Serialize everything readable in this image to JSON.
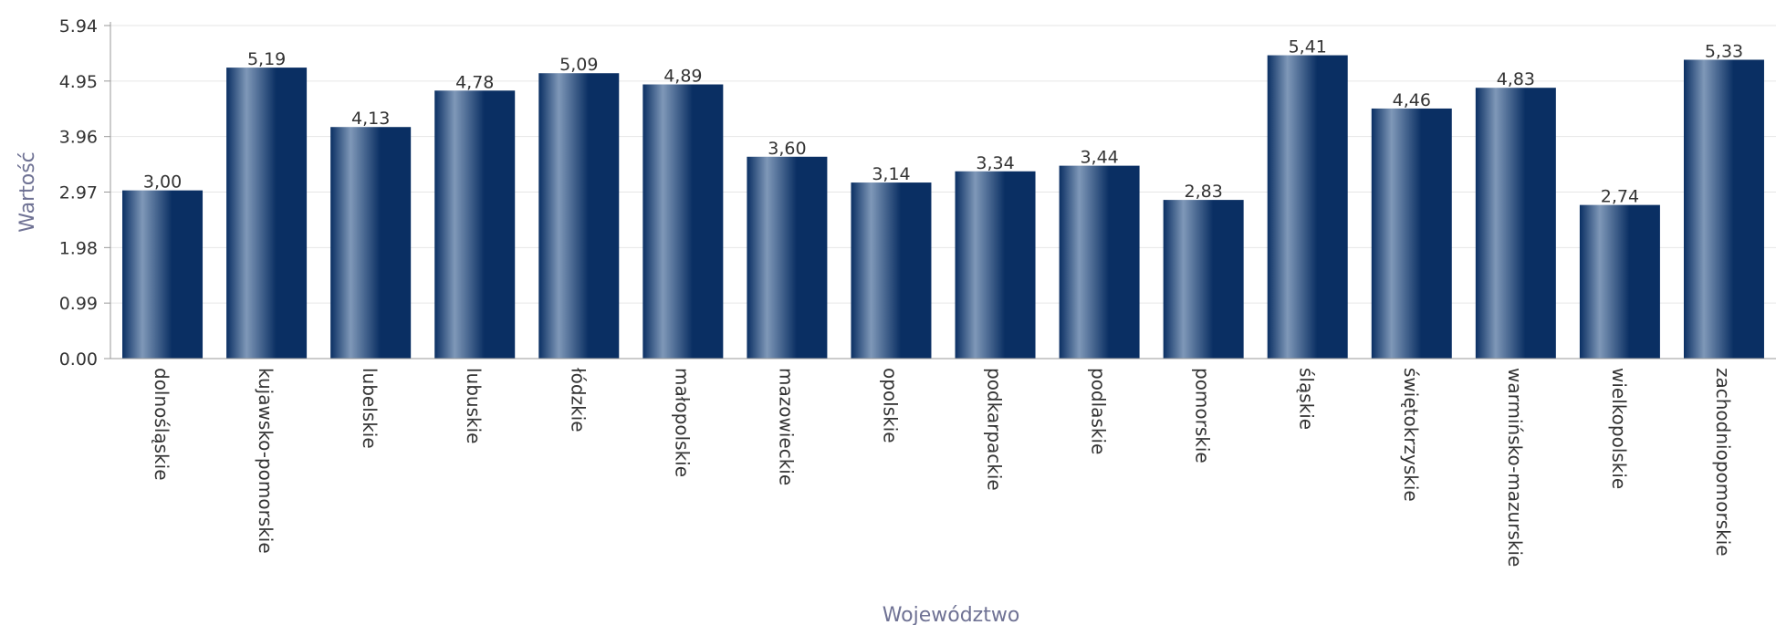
{
  "chart_data": {
    "type": "bar",
    "xlabel": "Województwo",
    "ylabel": "Wartość",
    "ylim": [
      0,
      5.94
    ],
    "yticks": [
      "0.00",
      "0.99",
      "1.98",
      "2.97",
      "3.96",
      "4.95",
      "5.94"
    ],
    "grid": true,
    "categories": [
      "dolnośląskie",
      "kujawsko-pomorskie",
      "lubelskie",
      "lubuskie",
      "łódzkie",
      "małopolskie",
      "mazowieckie",
      "opolskie",
      "podkarpackie",
      "podlaskie",
      "pomorskie",
      "śląskie",
      "świętokrzyskie",
      "warmińsko-mazurskie",
      "wielkopolskie",
      "zachodniopomorskie"
    ],
    "values": [
      3.0,
      5.19,
      4.13,
      4.78,
      5.09,
      4.89,
      3.6,
      3.14,
      3.34,
      3.44,
      2.83,
      5.41,
      4.46,
      4.83,
      2.74,
      5.33
    ],
    "value_labels": [
      "3,00",
      "5,19",
      "4,13",
      "4,78",
      "5,09",
      "4,89",
      "3,60",
      "3,14",
      "3,34",
      "3,44",
      "2,83",
      "5,41",
      "4,46",
      "4,83",
      "2,74",
      "5,33"
    ],
    "colors": {
      "bar_dark": "#0a2f63",
      "bar_light": "#7f98b8",
      "grid": "#e6e6e6",
      "axis_title": "#6f7294",
      "text": "#333333"
    }
  }
}
